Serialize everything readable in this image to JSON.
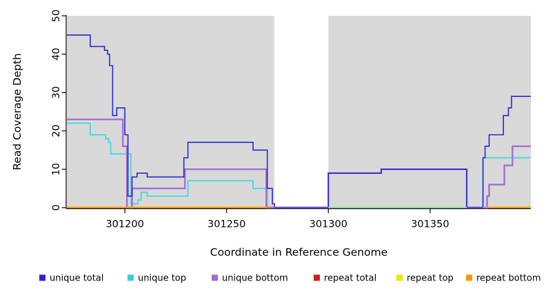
{
  "chart_data": {
    "type": "line",
    "step_interpolation": "after",
    "title": "",
    "xlabel": "Coordinate in Reference Genome",
    "ylabel": "Read Coverage Depth",
    "xlim": [
      301171.5,
      301399.5
    ],
    "ylim": [
      0,
      50
    ],
    "x_ticks": [
      301200,
      301250,
      301300,
      301350
    ],
    "y_ticks": [
      0,
      10,
      20,
      30,
      40,
      50
    ],
    "grid": false,
    "legend_position": "bottom",
    "shaded_color": "#d9d9d9",
    "shaded_regions": [
      [
        301171.5,
        301273.4
      ],
      [
        301300,
        301399.5
      ]
    ],
    "series": [
      {
        "name": "unique total",
        "color": "#2828cc",
        "width": 1.6,
        "steps": [
          [
            301171.5,
            45
          ],
          [
            301183,
            42
          ],
          [
            301190,
            41
          ],
          [
            301191.5,
            40
          ],
          [
            301192.5,
            37
          ],
          [
            301194,
            24
          ],
          [
            301196,
            26
          ],
          [
            301200,
            19
          ],
          [
            301201.5,
            3
          ],
          [
            301203.5,
            8
          ],
          [
            301206,
            9
          ],
          [
            301211,
            8
          ],
          [
            301229,
            13
          ],
          [
            301231,
            17
          ],
          [
            301263,
            15
          ],
          [
            301270,
            5
          ],
          [
            301272.5,
            1
          ],
          [
            301273.5,
            0
          ],
          [
            301300,
            9
          ],
          [
            301326,
            10
          ],
          [
            301368,
            0
          ],
          [
            301376,
            13
          ],
          [
            301377,
            16
          ],
          [
            301379,
            19
          ],
          [
            301386,
            24
          ],
          [
            301388.5,
            26
          ],
          [
            301390,
            29
          ]
        ]
      },
      {
        "name": "unique top",
        "color": "#4fd8dc",
        "width": 2.0,
        "steps": [
          [
            301171.5,
            22
          ],
          [
            301183,
            19
          ],
          [
            301190.5,
            18
          ],
          [
            301192,
            17
          ],
          [
            301193,
            14
          ],
          [
            301203,
            1
          ],
          [
            301206.5,
            2
          ],
          [
            301208,
            4
          ],
          [
            301211,
            3
          ],
          [
            301231,
            7
          ],
          [
            301263,
            5
          ],
          [
            301270,
            0
          ],
          [
            301376,
            13
          ]
        ]
      },
      {
        "name": "unique bottom",
        "color": "#a26fd2",
        "width": 2.4,
        "steps": [
          [
            301171.5,
            23
          ],
          [
            301199,
            16
          ],
          [
            301201,
            0
          ],
          [
            301203.5,
            5
          ],
          [
            301229.5,
            10
          ],
          [
            301269.5,
            0
          ],
          [
            301300,
            9
          ],
          [
            301326,
            10
          ],
          [
            301368,
            0
          ],
          [
            301378,
            3
          ],
          [
            301379,
            6
          ],
          [
            301386.5,
            11
          ],
          [
            301390.5,
            16
          ]
        ]
      },
      {
        "name": "repeat total",
        "color": "#cc2222",
        "width": 1.8,
        "steps": [
          [
            301171.5,
            0
          ]
        ]
      },
      {
        "name": "repeat top",
        "color": "#e8e800",
        "width": 1.8,
        "steps": [
          [
            301171.5,
            0
          ]
        ]
      },
      {
        "name": "repeat bottom",
        "color": "#ff9500",
        "width": 1.8,
        "steps": [
          [
            301171.5,
            0
          ]
        ]
      }
    ],
    "zero_line_segments": [
      {
        "from": 301171.5,
        "to": 301270,
        "color": "#ff9500"
      },
      {
        "from": 301270,
        "to": 301273.4,
        "color": "#e06666"
      },
      {
        "from": 301273.4,
        "to": 301300,
        "color": "#5a48dd"
      },
      {
        "from": 301300,
        "to": 301368,
        "color": "#8fd890"
      },
      {
        "from": 301368,
        "to": 301376,
        "color": "#5a48dd"
      },
      {
        "from": 301376,
        "to": 301378,
        "color": "#b488d8"
      },
      {
        "from": 301378,
        "to": 301399.5,
        "color": "#ff9500"
      }
    ],
    "legend_items": [
      {
        "label": "unique total",
        "color": "#2828cc"
      },
      {
        "label": "unique top",
        "color": "#3ecdd2"
      },
      {
        "label": "unique bottom",
        "color": "#a26fd2"
      },
      {
        "label": "repeat total",
        "color": "#cc2222"
      },
      {
        "label": "repeat top",
        "color": "#e8e800"
      },
      {
        "label": "repeat bottom",
        "color": "#ff9500"
      }
    ]
  }
}
